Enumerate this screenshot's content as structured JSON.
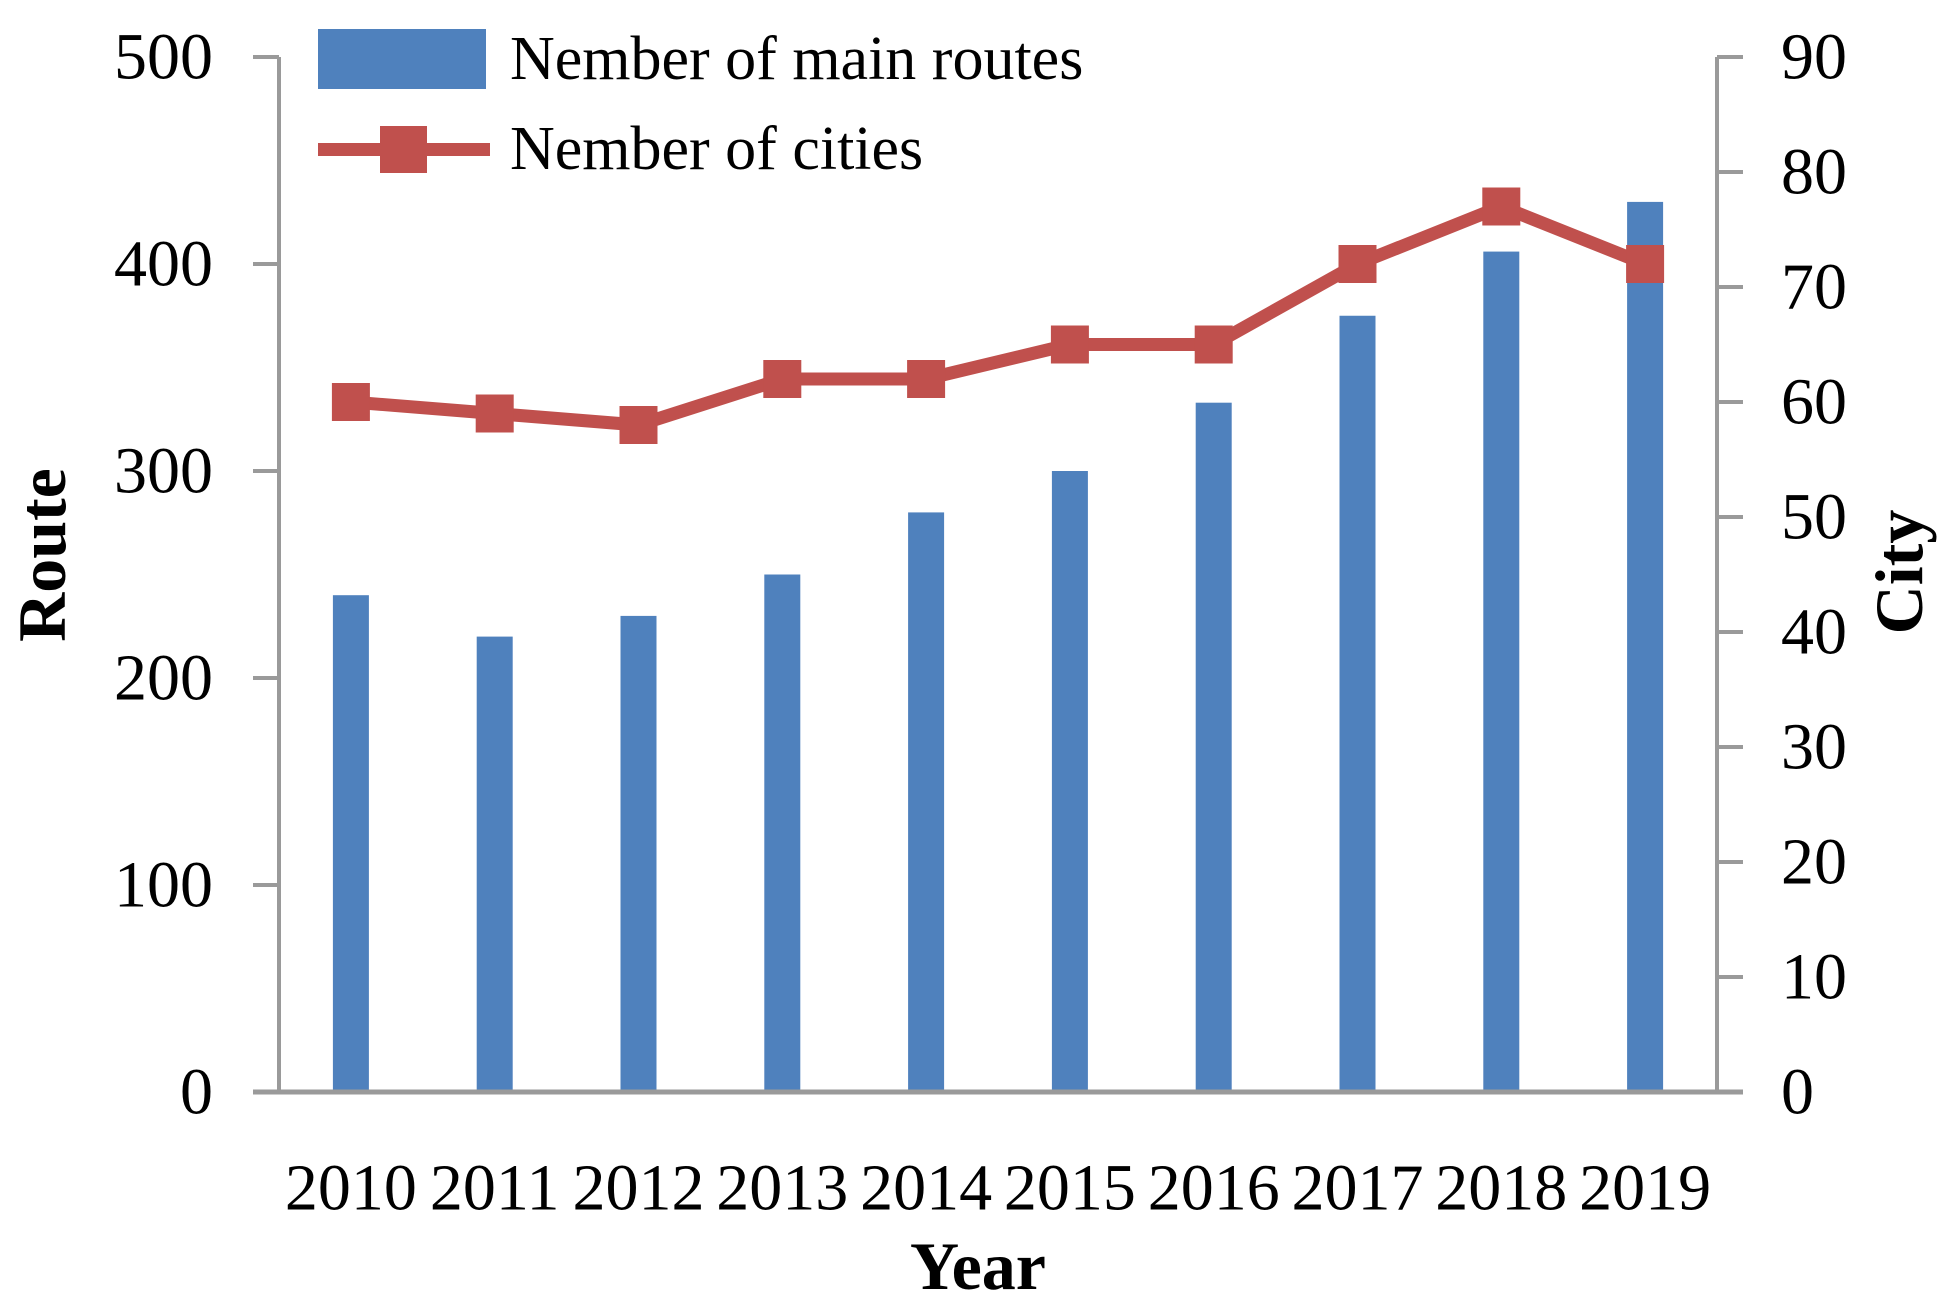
{
  "figure": {
    "background_color": "#ffffff",
    "axis_color": "#9a9a9a",
    "text_color": "#000000"
  },
  "chart_data": {
    "type": "combo-bar-line-dual-axis",
    "categories": [
      "2010",
      "2011",
      "2012",
      "2013",
      "2014",
      "2015",
      "2016",
      "2017",
      "2018",
      "2019"
    ],
    "series": [
      {
        "name": "Nember of main routes",
        "type": "bar",
        "y_axis": "left",
        "color": "#4f81bd",
        "values": [
          240,
          220,
          230,
          250,
          280,
          300,
          333,
          375,
          406,
          430
        ]
      },
      {
        "name": "Nember of cities",
        "type": "line",
        "y_axis": "right",
        "color": "#c0504d",
        "marker": "square",
        "values": [
          60,
          59,
          58,
          62,
          62,
          65,
          65,
          72,
          77,
          72
        ]
      }
    ],
    "xlabel": "Year",
    "ylabel_left": "Route",
    "ylabel_right": "City",
    "left_axis": {
      "range": [
        0,
        500
      ],
      "ticks": [
        0,
        100,
        200,
        300,
        400,
        500
      ]
    },
    "right_axis": {
      "range": [
        0,
        90
      ],
      "ticks": [
        0,
        10,
        20,
        30,
        40,
        50,
        60,
        70,
        80,
        90
      ]
    },
    "grid": false,
    "legend_position": "top-left-inside"
  }
}
